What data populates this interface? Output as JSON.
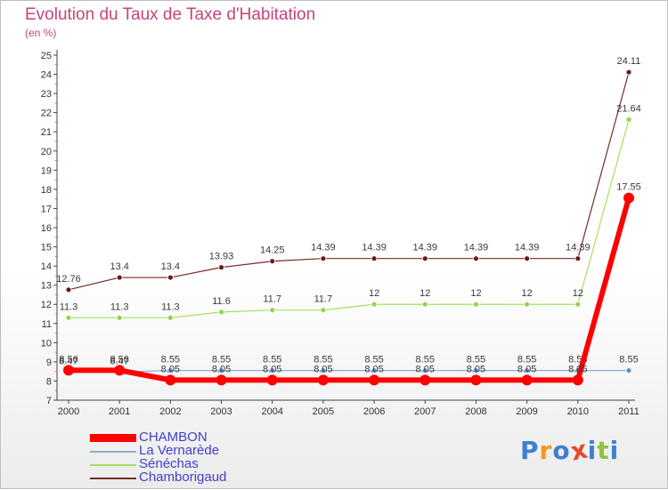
{
  "title": "Evolution du Taux de Taxe d'Habitation",
  "subtitle": "(en %)",
  "logo_text": "Proxiti",
  "chart_data": {
    "type": "line",
    "x": [
      "2000",
      "2001",
      "2002",
      "2003",
      "2004",
      "2005",
      "2006",
      "2007",
      "2008",
      "2009",
      "2010",
      "2011"
    ],
    "ylim": [
      7,
      25
    ],
    "yticks": [
      7,
      8,
      9,
      10,
      11,
      12,
      13,
      14,
      15,
      16,
      17,
      18,
      19,
      20,
      21,
      22,
      23,
      24,
      25
    ],
    "grid": false,
    "legend_position": "bottom-left",
    "series": [
      {
        "name": "Chamborigaud",
        "color": "#6b1a1a",
        "values": [
          12.76,
          13.4,
          13.4,
          13.93,
          14.25,
          14.39,
          14.39,
          14.39,
          14.39,
          14.39,
          14.39,
          24.11
        ],
        "labels": [
          "12.76",
          "13.4",
          "13.4",
          "13.93",
          "14.25",
          "14.39",
          "14.39",
          "14.39",
          "14.39",
          "14.39",
          "14.39",
          "24.11"
        ]
      },
      {
        "name": "Sénéchas",
        "color": "#8fd64a",
        "values": [
          11.3,
          11.3,
          11.3,
          11.6,
          11.7,
          11.7,
          12,
          12,
          12,
          12,
          12,
          21.64
        ],
        "labels": [
          "11.3",
          "11.3",
          "11.3",
          "11.6",
          "11.7",
          "11.7",
          "12",
          "12",
          "12",
          "12",
          "12",
          "21.64"
        ]
      },
      {
        "name": "La Vernarède",
        "color": "#5a8fd0",
        "values": [
          8.47,
          8.47,
          8.55,
          8.55,
          8.55,
          8.55,
          8.55,
          8.55,
          8.55,
          8.55,
          8.55,
          8.55
        ],
        "labels": [
          "8.47",
          "8.47",
          "8.55",
          "8.55",
          "8.55",
          "8.55",
          "8.55",
          "8.55",
          "8.55",
          "8.55",
          "8.55",
          "8.55"
        ]
      },
      {
        "name": "CHAMBON",
        "color": "#ff0000",
        "values": [
          8.56,
          8.56,
          8.05,
          8.05,
          8.05,
          8.05,
          8.05,
          8.05,
          8.05,
          8.05,
          8.05,
          17.55
        ],
        "labels": [
          "8.56",
          "8.56",
          "8.05",
          "8.05",
          "8.05",
          "8.05",
          "8.05",
          "8.05",
          "8.05",
          "8.05",
          "8.05",
          "17.55"
        ]
      }
    ]
  },
  "legend": [
    {
      "label": "CHAMBON",
      "color": "#ff0000"
    },
    {
      "label": "La Vernarède",
      "color": "#8aaed6"
    },
    {
      "label": "Sénéchas",
      "color": "#a6e05e"
    },
    {
      "label": "Chamborigaud",
      "color": "#7a2a2a"
    }
  ]
}
